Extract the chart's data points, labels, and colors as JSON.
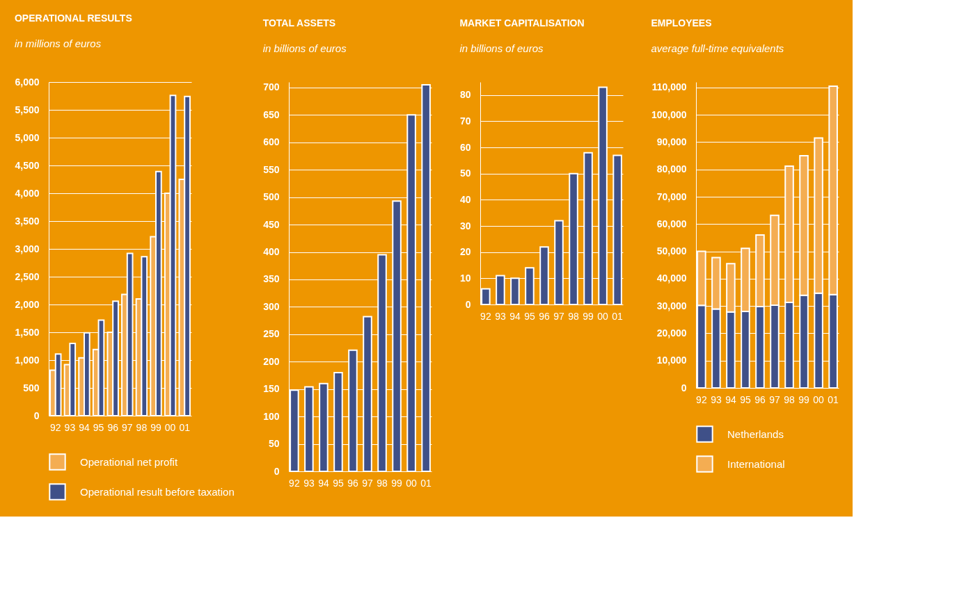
{
  "chart_data": [
    {
      "type": "bar",
      "title": "OPERATIONAL RESULTS",
      "subtitle": "in millions of euros",
      "categories": [
        "92",
        "93",
        "94",
        "95",
        "96",
        "97",
        "98",
        "99",
        "00",
        "01"
      ],
      "series": [
        {
          "name": "Operational net profit",
          "color": "#f4ad52",
          "values": [
            820,
            920,
            1040,
            1190,
            1500,
            2180,
            2100,
            3220,
            4000,
            4250
          ]
        },
        {
          "name": "Operational result before taxation",
          "color": "#3f5088",
          "values": [
            1110,
            1300,
            1490,
            1720,
            2060,
            2920,
            2860,
            4390,
            5760,
            5740
          ]
        }
      ],
      "ylim": [
        0,
        6000
      ],
      "yticks": [
        0,
        500,
        {
          "value": 1000,
          "label": "1,000"
        },
        {
          "value": 1500,
          "label": "1,500"
        },
        {
          "value": 2000,
          "label": "2,000"
        },
        {
          "value": 2500,
          "label": "2,500"
        },
        {
          "value": 3000,
          "label": "3,000"
        },
        {
          "value": 3500,
          "label": "3,500"
        },
        {
          "value": 4000,
          "label": "4,000"
        },
        {
          "value": 4500,
          "label": "4,500"
        },
        {
          "value": 5000,
          "label": "5,000"
        },
        {
          "value": 5500,
          "label": "5,500"
        },
        {
          "value": 6000,
          "label": "6,000"
        }
      ],
      "grid": "y",
      "legend": "bottom"
    },
    {
      "type": "bar",
      "title": "TOTAL ASSETS",
      "subtitle": "in billions of euros",
      "categories": [
        "92",
        "93",
        "94",
        "95",
        "96",
        "97",
        "98",
        "99",
        "00",
        "01"
      ],
      "series": [
        {
          "color": "#3f5088",
          "values": [
            148,
            154,
            160,
            180,
            221,
            282,
            395,
            493,
            650,
            705
          ]
        }
      ],
      "ylim": [
        0,
        710
      ],
      "yticks": [
        0,
        50,
        100,
        150,
        200,
        250,
        300,
        350,
        400,
        450,
        500,
        550,
        600,
        650,
        700
      ],
      "grid": "y"
    },
    {
      "type": "bar",
      "title": "MARKET CAPITALISATION",
      "subtitle": "in billions of euros",
      "categories": [
        "92",
        "93",
        "94",
        "95",
        "96",
        "97",
        "98",
        "99",
        "00",
        "01"
      ],
      "series": [
        {
          "color": "#3f5088",
          "values": [
            6,
            11,
            10,
            14,
            22,
            32,
            50,
            58,
            83,
            57
          ]
        }
      ],
      "ylim": [
        0,
        85
      ],
      "yticks": [
        0,
        10,
        20,
        30,
        40,
        50,
        60,
        70,
        80
      ],
      "grid": "y"
    },
    {
      "type": "bar",
      "title": "EMPLOYEES",
      "subtitle": "average full-time equivalents",
      "categories": [
        "92",
        "93",
        "94",
        "95",
        "96",
        "97",
        "98",
        "99",
        "00",
        "01"
      ],
      "stacked": true,
      "series": [
        {
          "name": "Netherlands",
          "color": "#3f5088",
          "values": [
            30200,
            28900,
            27800,
            28000,
            29800,
            30300,
            31300,
            33900,
            34700,
            34200
          ]
        },
        {
          "name": "International",
          "color": "#f4ad52",
          "values": [
            19800,
            18800,
            17700,
            23100,
            26200,
            32900,
            49900,
            51100,
            56800,
            76300
          ]
        }
      ],
      "ylim": [
        0,
        112000
      ],
      "yticks": [
        0,
        {
          "value": 10000,
          "label": "10,000"
        },
        {
          "value": 20000,
          "label": "20,000"
        },
        {
          "value": 30000,
          "label": "30,000"
        },
        {
          "value": 40000,
          "label": "40,000"
        },
        {
          "value": 50000,
          "label": "50,000"
        },
        {
          "value": 60000,
          "label": "60,000"
        },
        {
          "value": 70000,
          "label": "70,000"
        },
        {
          "value": 80000,
          "label": "80,000"
        },
        {
          "value": 90000,
          "label": "90,000"
        },
        {
          "value": 100000,
          "label": "100,000"
        },
        {
          "value": 110000,
          "label": "110,000"
        }
      ],
      "grid": "y",
      "legend": "bottom"
    }
  ]
}
